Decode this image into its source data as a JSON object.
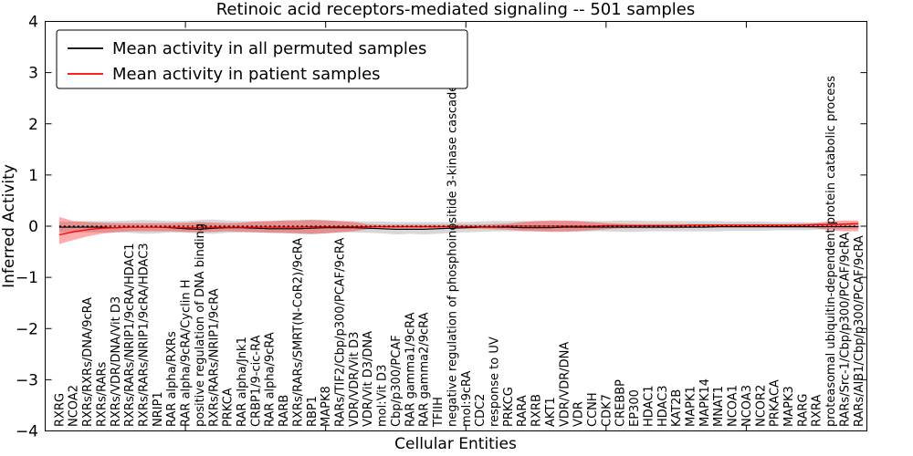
{
  "legend": {
    "entries": [
      {
        "label": "Mean activity in all permuted samples",
        "color": "#000000"
      },
      {
        "label": "Mean activity in patient samples",
        "color": "#ff0000"
      }
    ]
  },
  "chart_data": {
    "type": "line",
    "title": "Retinoic acid receptors-mediated signaling -- 501 samples",
    "xlabel": "Cellular Entities",
    "ylabel": "Inferred Activity",
    "ylim": [
      -4,
      4
    ],
    "yticks": [
      -4,
      -3,
      -2,
      -1,
      0,
      1,
      2,
      3,
      4
    ],
    "grid": false,
    "legend_position": "upper left",
    "zero_line": {
      "y": 0,
      "style": "dashed",
      "color": "#000000"
    },
    "band_colors": {
      "permuted": "rgba(110,110,110,0.28)",
      "patient": "rgba(255,0,0,0.33)"
    },
    "categories": [
      "RXRG",
      "NCOA2",
      "RXRs/RXRs/DNA/9cRA",
      "RXRs/RARs",
      "RXRs/VDR/DNA/Vit D3",
      "RXRs/RARs/NRIP1/9cRA/HDAC1",
      "RXRs/RARs/NRIP1/9cRA/HDAC3",
      "NRIP1",
      "RAR alpha/RXRs",
      "RAR alpha/9cRA/Cyclin H",
      "positive regulation of DNA binding",
      "RXRs/RARs/NRIP1/9cRA",
      "PRKCA",
      "RAR alpha/Jnk1",
      "CRBP1/9-cic-RA",
      "RAR alpha/9cRA",
      "RARB",
      "RXRs/RARs/SMRT(N-CoR2)/9cRA",
      "RBP1",
      "MAPK8",
      "RARs/TIF2/Cbp/p300/PCAF/9cRA",
      "VDR/VDR/Vit D3",
      "VDR/Vit D3/DNA",
      "mol:Vit D3",
      "Cbp/p300/PCAF",
      "RAR gamma1/9cRA",
      "RAR gamma2/9cRA",
      "TFIIH",
      "negative regulation of phosphoinositide 3-kinase cascade",
      "mol:9cRA",
      "CDC2",
      "response to UV",
      "PRKCG",
      "RARA",
      "RXRB",
      "AKT1",
      "VDR/VDR/DNA",
      "VDR",
      "CCNH",
      "CDK7",
      "CREBBP",
      "EP300",
      "HDAC1",
      "HDAC3",
      "KAT2B",
      "MAPK1",
      "MAPK14",
      "MNAT1",
      "NCOA1",
      "NCOA3",
      "NCOR2",
      "PRKACA",
      "MAPK3",
      "RARG",
      "RXRA",
      "proteasomal ubiquitin-dependent protein catabolic process",
      "RARs/Src-1/Cbp/p300/PCAF/9cRA",
      "RARs/AIB1/Cbp/p300/PCAF/9cRA"
    ],
    "series": [
      {
        "name": "Mean activity in all permuted samples",
        "color": "#000000",
        "values": [
          -0.02,
          -0.02,
          -0.02,
          -0.02,
          -0.03,
          -0.02,
          -0.02,
          -0.02,
          -0.03,
          -0.05,
          -0.06,
          -0.04,
          -0.03,
          -0.03,
          -0.04,
          -0.05,
          -0.05,
          -0.05,
          -0.04,
          -0.03,
          -0.03,
          -0.03,
          -0.04,
          -0.05,
          -0.06,
          -0.06,
          -0.06,
          -0.05,
          -0.04,
          -0.03,
          -0.02,
          -0.02,
          -0.02,
          -0.03,
          -0.03,
          -0.03,
          -0.02,
          -0.02,
          -0.02,
          -0.02,
          -0.02,
          -0.02,
          -0.02,
          -0.02,
          -0.02,
          -0.02,
          -0.02,
          -0.01,
          -0.01,
          -0.01,
          -0.01,
          -0.01,
          -0.01,
          -0.01,
          -0.01,
          -0.01,
          -0.01,
          -0.01
        ]
      },
      {
        "name": "Mean activity in patient samples",
        "color": "#ff0000",
        "values": [
          -0.17,
          -0.11,
          -0.07,
          -0.04,
          -0.03,
          -0.02,
          -0.02,
          -0.02,
          -0.02,
          -0.03,
          -0.03,
          -0.02,
          -0.02,
          -0.02,
          -0.02,
          -0.02,
          -0.02,
          -0.02,
          -0.01,
          -0.01,
          -0.01,
          -0.01,
          -0.01,
          -0.01,
          -0.01,
          -0.01,
          -0.01,
          -0.01,
          -0.01,
          -0.01,
          -0.01,
          -0.01,
          0,
          0,
          0,
          0,
          0,
          0,
          0,
          0.01,
          0.01,
          0.01,
          0.01,
          0.01,
          0.01,
          0.02,
          0.02,
          0.02,
          0.02,
          0.02,
          0.02,
          0.02,
          0.02,
          0.02,
          0.03,
          0.03,
          0.04,
          0.05
        ]
      }
    ],
    "bands": [
      {
        "name": "permuted-samples-range",
        "upper": [
          0.08,
          0.09,
          0.1,
          0.1,
          0.1,
          0.11,
          0.12,
          0.11,
          0.1,
          0.1,
          0.12,
          0.13,
          0.11,
          0.1,
          0.1,
          0.1,
          0.11,
          0.12,
          0.13,
          0.12,
          0.1,
          0.1,
          0.09,
          0.09,
          0.08,
          0.08,
          0.08,
          0.08,
          0.08,
          0.08,
          0.09,
          0.1,
          0.1,
          0.1,
          0.1,
          0.1,
          0.1,
          0.1,
          0.1,
          0.1,
          0.11,
          0.11,
          0.1,
          0.1,
          0.1,
          0.1,
          0.1,
          0.1,
          0.09,
          0.09,
          0.09,
          0.08,
          0.08,
          0.08,
          0.07,
          0.06,
          0.06,
          0.05
        ],
        "lower": [
          -0.12,
          -0.12,
          -0.12,
          -0.12,
          -0.12,
          -0.13,
          -0.15,
          -0.14,
          -0.12,
          -0.13,
          -0.14,
          -0.15,
          -0.13,
          -0.12,
          -0.12,
          -0.13,
          -0.14,
          -0.15,
          -0.16,
          -0.14,
          -0.12,
          -0.12,
          -0.13,
          -0.14,
          -0.16,
          -0.15,
          -0.16,
          -0.15,
          -0.13,
          -0.12,
          -0.11,
          -0.1,
          -0.1,
          -0.1,
          -0.1,
          -0.1,
          -0.1,
          -0.1,
          -0.1,
          -0.1,
          -0.11,
          -0.11,
          -0.1,
          -0.1,
          -0.1,
          -0.1,
          -0.1,
          -0.1,
          -0.09,
          -0.09,
          -0.09,
          -0.08,
          -0.08,
          -0.08,
          -0.07,
          -0.06,
          -0.06,
          -0.05
        ]
      },
      {
        "name": "patient-samples-range",
        "upper": [
          0.18,
          0.1,
          0.08,
          0.07,
          0.06,
          0.06,
          0.06,
          0.06,
          0.06,
          0.07,
          0.08,
          0.07,
          0.06,
          0.07,
          0.09,
          0.1,
          0.11,
          0.11,
          0.12,
          0.11,
          0.1,
          0.08,
          0.04,
          0.03,
          0.03,
          0.03,
          0.03,
          0.03,
          0.03,
          0.03,
          0.03,
          0.04,
          0.05,
          0.08,
          0.1,
          0.11,
          0.11,
          0.1,
          0.08,
          0.06,
          0.05,
          0.04,
          0.04,
          0.04,
          0.04,
          0.04,
          0.04,
          0.04,
          0.04,
          0.04,
          0.04,
          0.04,
          0.04,
          0.05,
          0.06,
          0.1,
          0.11,
          0.11
        ],
        "lower": [
          -0.35,
          -0.27,
          -0.2,
          -0.15,
          -0.12,
          -0.1,
          -0.1,
          -0.1,
          -0.1,
          -0.11,
          -0.12,
          -0.11,
          -0.1,
          -0.11,
          -0.12,
          -0.13,
          -0.13,
          -0.14,
          -0.15,
          -0.14,
          -0.12,
          -0.1,
          -0.06,
          -0.05,
          -0.05,
          -0.05,
          -0.05,
          -0.05,
          -0.05,
          -0.05,
          -0.05,
          -0.06,
          -0.07,
          -0.09,
          -0.1,
          -0.11,
          -0.11,
          -0.1,
          -0.08,
          -0.06,
          -0.04,
          -0.04,
          -0.04,
          -0.04,
          -0.04,
          -0.03,
          -0.03,
          -0.03,
          -0.03,
          -0.03,
          -0.03,
          -0.03,
          -0.03,
          -0.03,
          -0.04,
          -0.08,
          -0.1,
          -0.1
        ]
      }
    ]
  }
}
